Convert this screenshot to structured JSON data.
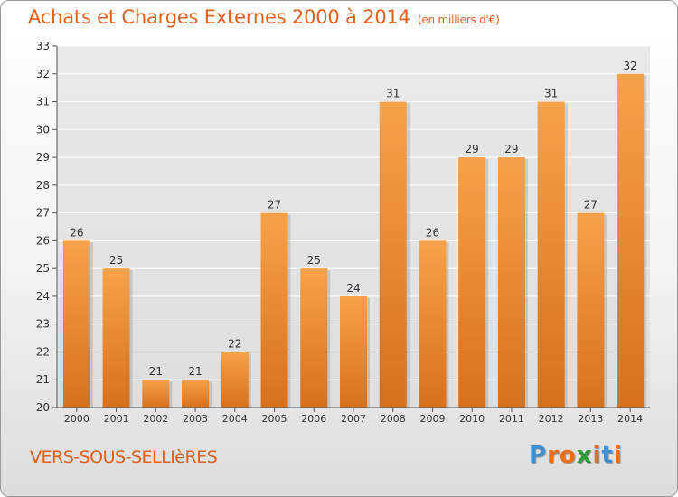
{
  "header": {
    "title": "Achats et Charges Externes 2000 à 2014",
    "subtitle": "(en milliers d'€)"
  },
  "footer": {
    "town": "VERS-SOUS-SELLIèRES",
    "logo": {
      "letters": [
        "P",
        "r",
        "o",
        "x",
        "i",
        "t",
        "i"
      ],
      "colors": [
        "#3a8fd6",
        "#e8701c",
        "#e8701c",
        "#2e9a3a",
        "#e8701c",
        "#3a8fd6",
        "#e8701c"
      ]
    }
  },
  "chart_data": {
    "type": "bar",
    "categories": [
      "2000",
      "2001",
      "2002",
      "2003",
      "2004",
      "2005",
      "2006",
      "2007",
      "2008",
      "2009",
      "2010",
      "2011",
      "2012",
      "2013",
      "2014"
    ],
    "values": [
      26,
      25,
      21,
      21,
      22,
      27,
      25,
      24,
      31,
      26,
      29,
      29,
      31,
      27,
      32
    ],
    "ylim": [
      20,
      33
    ],
    "yticks": [
      20,
      21,
      22,
      23,
      24,
      25,
      26,
      27,
      28,
      29,
      30,
      31,
      32,
      33
    ],
    "grid": true,
    "bar_color": "#f08c2e",
    "show_data_labels": true
  }
}
